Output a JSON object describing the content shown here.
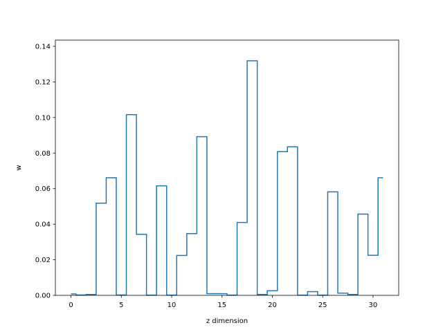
{
  "chart_data": {
    "type": "line",
    "drawstyle": "steps-mid",
    "xlabel": "z dimension",
    "ylabel": "w",
    "xlim": [
      -1.55,
      32.55
    ],
    "ylim": [
      0,
      0.1435
    ],
    "xticks": [
      0,
      5,
      10,
      15,
      20,
      25,
      30
    ],
    "yticks": [
      0.0,
      0.02,
      0.04,
      0.06,
      0.08,
      0.1,
      0.12,
      0.14
    ],
    "xtick_labels": [
      "0",
      "5",
      "10",
      "15",
      "20",
      "25",
      "30"
    ],
    "ytick_labels": [
      "0.00",
      "0.02",
      "0.04",
      "0.06",
      "0.08",
      "0.10",
      "0.12",
      "0.14"
    ],
    "grid": false,
    "color": "#1f77b4",
    "x": [
      0,
      1,
      2,
      3,
      4,
      5,
      6,
      7,
      8,
      9,
      10,
      11,
      12,
      13,
      14,
      15,
      16,
      17,
      18,
      19,
      20,
      21,
      22,
      23,
      24,
      25,
      26,
      27,
      28,
      29,
      30,
      31
    ],
    "y": [
      0.0008,
      0.0002,
      0.0005,
      0.0518,
      0.0661,
      0.0002,
      0.1016,
      0.0343,
      0.0001,
      0.0616,
      0.0001,
      0.0224,
      0.0347,
      0.0892,
      0.0009,
      0.0009,
      0.0001,
      0.041,
      0.1319,
      0.0005,
      0.0026,
      0.0808,
      0.0835,
      0.0001,
      0.0021,
      0.0001,
      0.0582,
      0.0012,
      0.0005,
      0.0457,
      0.0225,
      0.0661
    ]
  }
}
